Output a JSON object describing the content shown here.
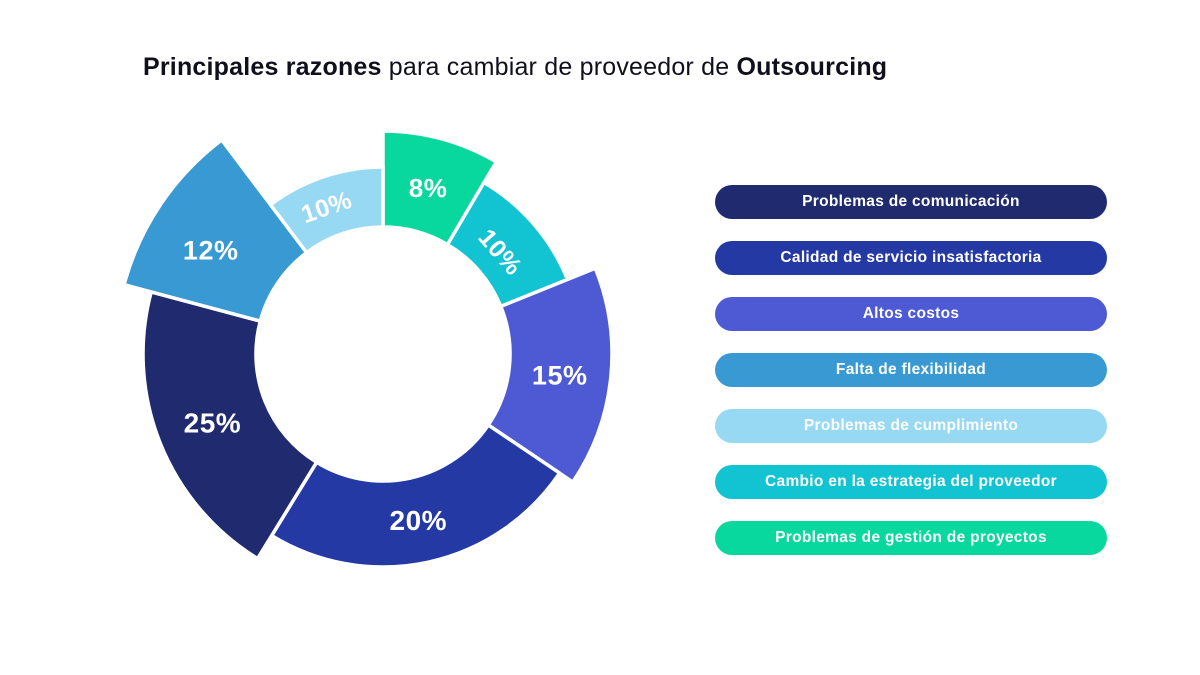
{
  "title": {
    "bold_lead": "Principales razones",
    "regular_mid": " para cambiar de proveedor de ",
    "bold_tail": "Outsourcing"
  },
  "chart_data": {
    "type": "pie",
    "subtype": "donut-variable-radius",
    "title": "Principales razones para cambiar de proveedor de Outsourcing",
    "legend_position": "right",
    "total": 100,
    "segments": [
      {
        "label": "Problemas de gestión de proyectos",
        "value": 8,
        "display": "8%",
        "color": "#09d89e"
      },
      {
        "label": "Cambio en la estrategia del proveedor",
        "value": 10,
        "display": "10%",
        "color": "#12c3d1"
      },
      {
        "label": "Altos costos",
        "value": 15,
        "display": "15%",
        "color": "#4e59d4"
      },
      {
        "label": "Calidad de servicio insatisfactoria",
        "value": 20,
        "display": "20%",
        "color": "#2539a5"
      },
      {
        "label": "Problemas de comunicación",
        "value": 25,
        "display": "25%",
        "color": "#1f2b6e"
      },
      {
        "label": "Falta de flexibilidad",
        "value": 12,
        "display": "12%",
        "color": "#3899d3"
      },
      {
        "label": "Problemas de cumplimiento",
        "value": 10,
        "display": "10%",
        "color": "#97d9f3"
      }
    ],
    "legend_order": [
      4,
      3,
      2,
      5,
      6,
      1,
      0
    ],
    "label_text_color": "#ffffff"
  }
}
